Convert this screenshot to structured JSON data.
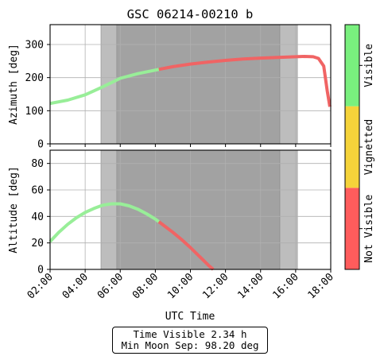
{
  "chart_data": {
    "type": "line",
    "title": "GSC 06214-00210 b",
    "xlabel": "UTC Time",
    "x_ticks": [
      "02:00",
      "04:00",
      "06:00",
      "08:00",
      "10:00",
      "12:00",
      "14:00",
      "16:00",
      "18:00"
    ],
    "xlim_hours": [
      2,
      18
    ],
    "panels": [
      {
        "name": "azimuth",
        "ylabel": "Azimuth [deg]",
        "ylim": [
          0,
          360
        ],
        "yticks": [
          0,
          100,
          200,
          300
        ],
        "grid": true,
        "segments": [
          {
            "status": "Visible",
            "color": "#98ee98",
            "x": [
              2.0,
              3.0,
              4.0,
              4.5,
              5.0,
              5.5,
              6.0,
              7.0,
              8.2
            ],
            "y": [
              122,
              132,
              148,
              160,
              172,
              185,
              198,
              212,
              225
            ]
          },
          {
            "status": "Not Visible",
            "color": "#f06464",
            "x": [
              8.2,
              9.0,
              10.0,
              11.0,
              12.0,
              13.0,
              14.0,
              15.0,
              16.0,
              16.5,
              17.0,
              17.3,
              17.6,
              17.8,
              17.95
            ],
            "y": [
              225,
              233,
              241,
              247,
              252,
              256,
              259,
              261,
              263,
              264,
              263,
              258,
              235,
              160,
              112
            ]
          }
        ]
      },
      {
        "name": "altitude",
        "ylabel": "Altitude [deg]",
        "ylim": [
          0,
          90
        ],
        "yticks": [
          0,
          20,
          40,
          60,
          80
        ],
        "grid": true,
        "segments": [
          {
            "status": "Visible",
            "color": "#98ee98",
            "x": [
              2.0,
              2.5,
              3.0,
              3.5,
              4.0,
              4.5,
              5.0,
              5.5,
              6.0,
              6.5,
              7.0,
              7.5,
              8.0,
              8.2
            ],
            "y": [
              21,
              28,
              34,
              39,
              43,
              46,
              48.5,
              49.5,
              49.5,
              48,
              45.5,
              42,
              38,
              36
            ]
          },
          {
            "status": "Not Visible",
            "color": "#f06464",
            "x": [
              8.2,
              8.5,
              9.0,
              9.5,
              10.0,
              10.5,
              11.0,
              11.3
            ],
            "y": [
              36,
              33,
              28,
              22.5,
              16.5,
              10,
              3.5,
              0
            ]
          }
        ]
      }
    ],
    "shaded_regions": [
      {
        "kind": "twilight",
        "x": [
          4.9,
          6.0
        ],
        "color": "#bdbdbd"
      },
      {
        "kind": "night",
        "x": [
          5.8,
          15.1
        ],
        "color": "#a2a2a2"
      },
      {
        "kind": "twilight",
        "x": [
          15.1,
          16.1
        ],
        "color": "#bdbdbd"
      }
    ],
    "colorbar": [
      {
        "label": "Not Visible",
        "color": "#ff5c5c"
      },
      {
        "label": "Vignetted",
        "color": "#f5d33a"
      },
      {
        "label": "Visible",
        "color": "#79f07e"
      }
    ]
  },
  "info": {
    "time_visible": "Time Visible 2.34 h",
    "min_moon_sep": "Min Moon Sep: 98.20 deg"
  }
}
